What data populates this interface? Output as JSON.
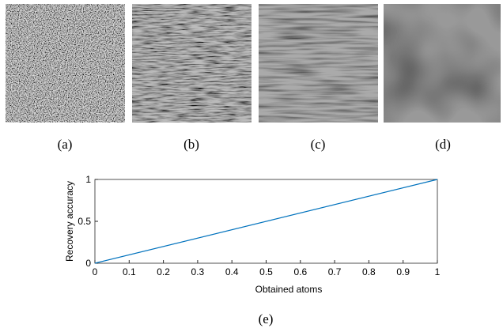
{
  "image_captions": [
    "(a)",
    "(b)",
    "(c)",
    "(d)"
  ],
  "figure_caption": "(e)",
  "chart_data": {
    "type": "line",
    "xlabel": "Obtained atoms",
    "ylabel": "Recovery accuracy",
    "x": [
      0,
      1
    ],
    "series": [
      {
        "name": "Recovery accuracy",
        "color": "#0072bd",
        "values": [
          0,
          1
        ]
      }
    ],
    "xlim": [
      0,
      1
    ],
    "ylim": [
      0,
      1
    ],
    "xticks": [
      0,
      0.1,
      0.2,
      0.3,
      0.4,
      0.5,
      0.6,
      0.7,
      0.8,
      0.9,
      1
    ],
    "yticks": [
      0,
      0.5,
      1
    ],
    "grid": false
  }
}
